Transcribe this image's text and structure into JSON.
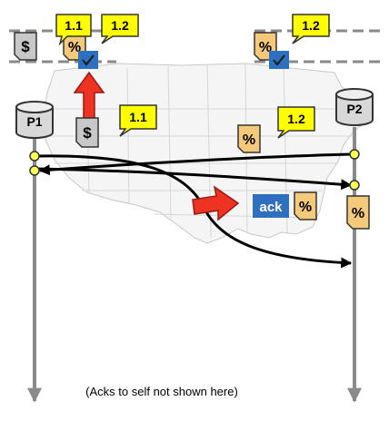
{
  "processes": [
    {
      "name": "P1"
    },
    {
      "name": "P2"
    }
  ],
  "documents": {
    "dollar": "$",
    "percent": "%"
  },
  "tags": {
    "v11": "1.1",
    "v12": "1.2"
  },
  "message": {
    "ack": "ack"
  },
  "caption": "(Acks to self not shown here)",
  "colors": {
    "timeline": "#8a8a8a",
    "tag_fill": "#ffff00",
    "percent_doc": "#f5c97a",
    "dollar_doc": "#c8c8c8",
    "ack_box": "#2f6fc0",
    "red_arrow": "#ee3322",
    "event_dot": "#ffff55"
  }
}
